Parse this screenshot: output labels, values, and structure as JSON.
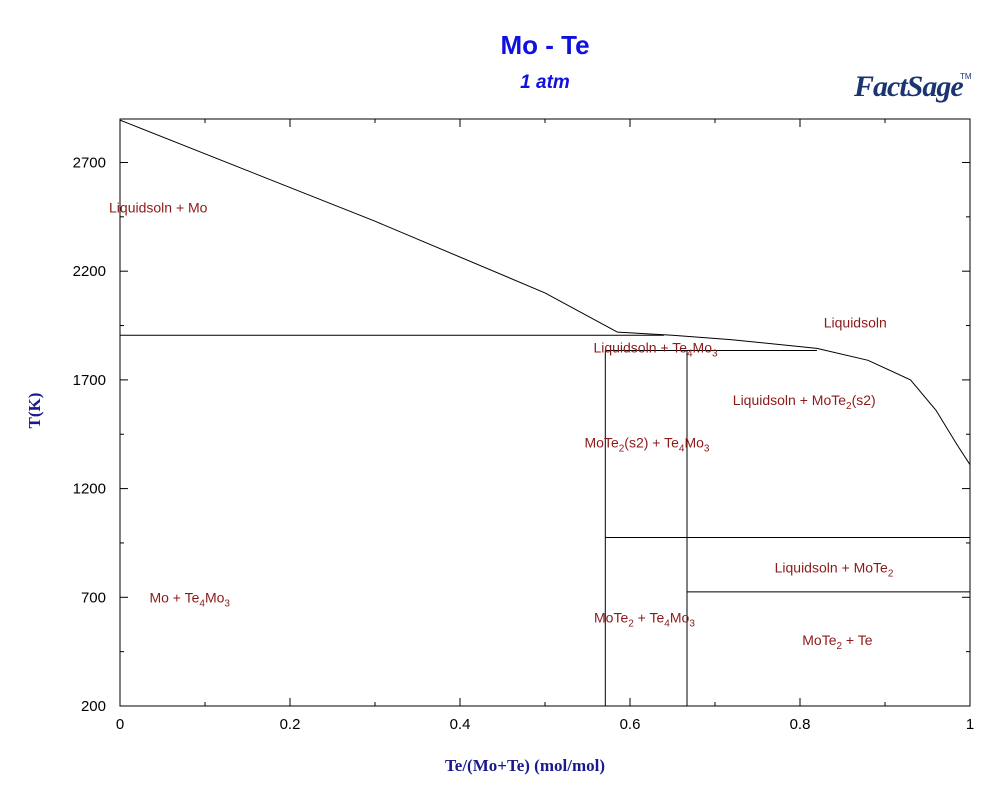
{
  "chart_data": {
    "type": "line",
    "title": "Mo - Te",
    "subtitle": "1 atm",
    "xlabel": "Te/(Mo+Te) (mol/mol)",
    "ylabel": "T(K)",
    "xlim": [
      0,
      1
    ],
    "ylim": [
      200,
      2900
    ],
    "x_ticks": [
      {
        "value": 0,
        "label": "0"
      },
      {
        "value": 0.2,
        "label": "0.2"
      },
      {
        "value": 0.4,
        "label": "0.4"
      },
      {
        "value": 0.6,
        "label": "0.6"
      },
      {
        "value": 0.8,
        "label": "0.8"
      },
      {
        "value": 1,
        "label": "1"
      }
    ],
    "y_ticks": [
      {
        "value": 200,
        "label": "200"
      },
      {
        "value": 700,
        "label": "700"
      },
      {
        "value": 1200,
        "label": "1200"
      },
      {
        "value": 1700,
        "label": "1700"
      },
      {
        "value": 2200,
        "label": "2200"
      },
      {
        "value": 2700,
        "label": "2700"
      }
    ],
    "grid": false,
    "lines": [
      {
        "points": [
          [
            0,
            2895
          ],
          [
            0.3,
            2430
          ],
          [
            0.5,
            2100
          ],
          [
            0.585,
            1920
          ]
        ]
      },
      {
        "points": [
          [
            0.585,
            1920
          ],
          [
            0.65,
            1905
          ],
          [
            0.72,
            1885
          ],
          [
            0.82,
            1845
          ],
          [
            0.88,
            1790
          ],
          [
            0.93,
            1700
          ],
          [
            0.96,
            1560
          ],
          [
            0.985,
            1400
          ],
          [
            1.0,
            1310
          ]
        ]
      },
      {
        "points": [
          [
            0,
            1905
          ],
          [
            0.64,
            1905
          ]
        ]
      },
      {
        "points": [
          [
            0.571,
            1835
          ],
          [
            0.82,
            1835
          ]
        ]
      },
      {
        "points": [
          [
            0.571,
            200
          ],
          [
            0.571,
            1835
          ]
        ]
      },
      {
        "points": [
          [
            0.667,
            200
          ],
          [
            0.667,
            1835
          ]
        ]
      },
      {
        "points": [
          [
            0.571,
            975
          ],
          [
            1.0,
            975
          ]
        ]
      },
      {
        "points": [
          [
            0.667,
            725
          ],
          [
            1.0,
            725
          ]
        ]
      }
    ],
    "region_labels": [
      {
        "parts": [
          {
            "t": "Liquidsoln + Mo"
          }
        ],
        "x": 0.045,
        "y": 2470
      },
      {
        "parts": [
          {
            "t": "Liquidsoln"
          }
        ],
        "x": 0.865,
        "y": 1940
      },
      {
        "parts": [
          {
            "t": "Liquidsoln + Te"
          },
          {
            "t": "4",
            "sub": true
          },
          {
            "t": "Mo"
          },
          {
            "t": "3",
            "sub": true
          }
        ],
        "x": 0.63,
        "y": 1825
      },
      {
        "parts": [
          {
            "t": "Liquidsoln + MoTe"
          },
          {
            "t": "2",
            "sub": true
          },
          {
            "t": "(s2)"
          }
        ],
        "x": 0.805,
        "y": 1585
      },
      {
        "parts": [
          {
            "t": "MoTe"
          },
          {
            "t": "2",
            "sub": true
          },
          {
            "t": "(s2) + Te"
          },
          {
            "t": "4",
            "sub": true
          },
          {
            "t": "Mo"
          },
          {
            "t": "3",
            "sub": true
          }
        ],
        "x": 0.62,
        "y": 1390
      },
      {
        "parts": [
          {
            "t": "Liquidsoln + MoTe"
          },
          {
            "t": "2",
            "sub": true
          }
        ],
        "x": 0.84,
        "y": 815
      },
      {
        "parts": [
          {
            "t": "Mo + Te"
          },
          {
            "t": "4",
            "sub": true
          },
          {
            "t": "Mo"
          },
          {
            "t": "3",
            "sub": true
          }
        ],
        "x": 0.082,
        "y": 675
      },
      {
        "parts": [
          {
            "t": "MoTe"
          },
          {
            "t": "2",
            "sub": true
          },
          {
            "t": " + Te"
          },
          {
            "t": "4",
            "sub": true
          },
          {
            "t": "Mo"
          },
          {
            "t": "3",
            "sub": true
          }
        ],
        "x": 0.617,
        "y": 585
      },
      {
        "parts": [
          {
            "t": "MoTe"
          },
          {
            "t": "2",
            "sub": true
          },
          {
            "t": " + Te"
          }
        ],
        "x": 0.844,
        "y": 480
      }
    ],
    "colors": {
      "title": "#1010e0",
      "axis_title": "#1a1a8c",
      "label": "#8b1a1a",
      "line": "#000000"
    }
  },
  "logo": {
    "text": "FactSage",
    "tm": "TM"
  }
}
